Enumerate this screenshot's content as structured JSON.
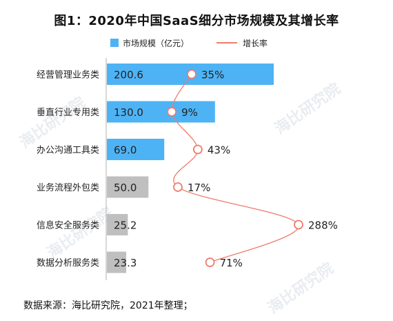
{
  "title": "图1：2020年中国SaaS细分市场规模及其增长率",
  "legend": {
    "bar_label": "市场规模（亿元）",
    "line_label": "增长率"
  },
  "footnote": "数据来源：海比研究院，2021年整理；",
  "watermark": "海比研究院",
  "colors": {
    "bar_highlight": "#4eb3f5",
    "bar_muted": "#bfbfbf",
    "line": "#ee7b6b",
    "axis": "#b0b0b0"
  },
  "chart_data": {
    "type": "bar",
    "orientation": "horizontal",
    "categories": [
      "经营管理业务类",
      "垂直行业专用类",
      "办公沟通工具类",
      "业务流程外包类",
      "信息安全服务类",
      "数据分析服务类"
    ],
    "series": [
      {
        "name": "市场规模（亿元）",
        "type": "bar",
        "values": [
          200.6,
          130.0,
          69.0,
          50.0,
          25.2,
          23.3
        ],
        "labels": [
          "200.6",
          "130.0",
          "69.0",
          "50.0",
          "25.2",
          "23.3"
        ],
        "highlighted": [
          true,
          true,
          true,
          false,
          false,
          false
        ]
      },
      {
        "name": "增长率",
        "type": "line",
        "values": [
          35,
          9,
          43,
          17,
          288,
          71
        ],
        "labels": [
          "35%",
          "9%",
          "43%",
          "17%",
          "288%",
          "71%"
        ]
      }
    ]
  }
}
